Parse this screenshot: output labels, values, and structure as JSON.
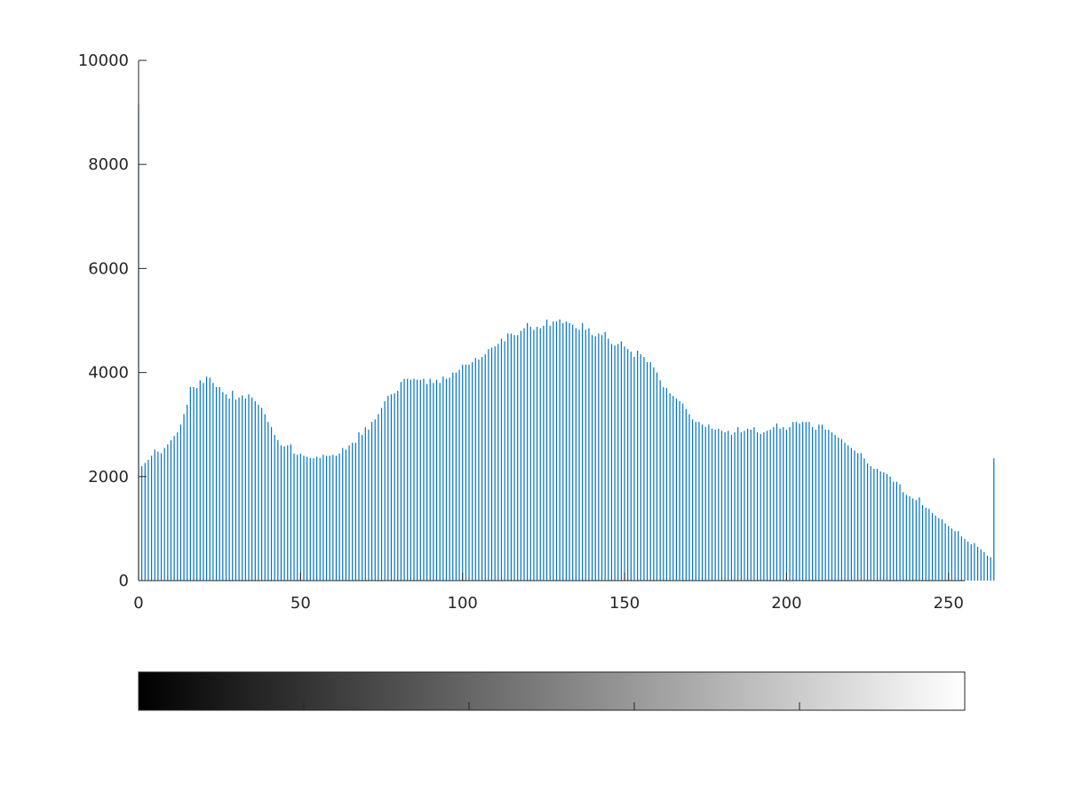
{
  "chart_data": {
    "type": "bar",
    "title": "",
    "xlabel": "",
    "ylabel": "",
    "x_start": 0,
    "x_end": 255,
    "xlim": [
      0,
      255
    ],
    "ylim": [
      0,
      10000
    ],
    "xticks": [
      0,
      50,
      100,
      150,
      200,
      250
    ],
    "yticks": [
      0,
      2000,
      4000,
      6000,
      8000,
      10000
    ],
    "grid": false,
    "legend": "none",
    "bar_color": "#0072bd",
    "values": [
      9150,
      2200,
      2260,
      2320,
      2400,
      2520,
      2480,
      2450,
      2550,
      2620,
      2700,
      2780,
      2850,
      3000,
      3200,
      3380,
      3720,
      3720,
      3700,
      3850,
      3800,
      3920,
      3900,
      3800,
      3720,
      3720,
      3620,
      3580,
      3500,
      3650,
      3480,
      3520,
      3560,
      3500,
      3580,
      3520,
      3450,
      3380,
      3320,
      3200,
      3050,
      2950,
      2800,
      2700,
      2600,
      2580,
      2600,
      2620,
      2440,
      2420,
      2440,
      2400,
      2380,
      2360,
      2350,
      2380,
      2360,
      2420,
      2400,
      2400,
      2420,
      2400,
      2440,
      2550,
      2520,
      2600,
      2650,
      2650,
      2850,
      2800,
      2950,
      2900,
      3050,
      3100,
      3200,
      3320,
      3450,
      3550,
      3580,
      3600,
      3650,
      3820,
      3880,
      3880,
      3860,
      3880,
      3860,
      3860,
      3880,
      3780,
      3880,
      3800,
      3860,
      3800,
      3920,
      3880,
      3900,
      4000,
      4000,
      4050,
      4150,
      4150,
      4150,
      4200,
      4280,
      4250,
      4300,
      4350,
      4450,
      4480,
      4500,
      4550,
      4650,
      4600,
      4750,
      4750,
      4720,
      4720,
      4800,
      4850,
      4950,
      4880,
      4820,
      4880,
      4850,
      4900,
      5020,
      4900,
      4980,
      4980,
      5020,
      4950,
      4980,
      4950,
      4920,
      4850,
      4820,
      4950,
      4820,
      4850,
      4720,
      4700,
      4750,
      4720,
      4780,
      4650,
      4550,
      4520,
      4550,
      4600,
      4500,
      4450,
      4400,
      4300,
      4420,
      4350,
      4300,
      4200,
      4200,
      4100,
      4000,
      3850,
      3720,
      3700,
      3600,
      3550,
      3500,
      3450,
      3400,
      3300,
      3200,
      3100,
      3050,
      3050,
      3000,
      2950,
      3000,
      2920,
      2900,
      2920,
      2880,
      2850,
      2880,
      2800,
      2850,
      2950,
      2850,
      2880,
      2920,
      2900,
      2950,
      2850,
      2820,
      2850,
      2880,
      2900,
      2950,
      3020,
      2920,
      2950,
      2900,
      2950,
      3050,
      3050,
      3020,
      3050,
      3050,
      3050,
      2950,
      2900,
      3000,
      3000,
      2900,
      2900,
      2850,
      2800,
      2750,
      2720,
      2650,
      2600,
      2550,
      2500,
      2450,
      2450,
      2350,
      2250,
      2200,
      2150,
      2150,
      2100,
      2080,
      2050,
      2000,
      1900,
      1900,
      1850,
      1700,
      1650,
      1620,
      1580,
      1550,
      1600,
      1450,
      1400,
      1380,
      1300,
      1250,
      1200,
      1180,
      1100,
      1050,
      1000,
      950,
      950,
      850,
      800,
      750,
      700,
      720,
      650,
      600,
      550,
      480,
      450,
      2350
    ]
  },
  "colorbar": {
    "gradient_start": "#000000",
    "gradient_end": "#ffffff",
    "range": [
      0,
      255
    ]
  }
}
